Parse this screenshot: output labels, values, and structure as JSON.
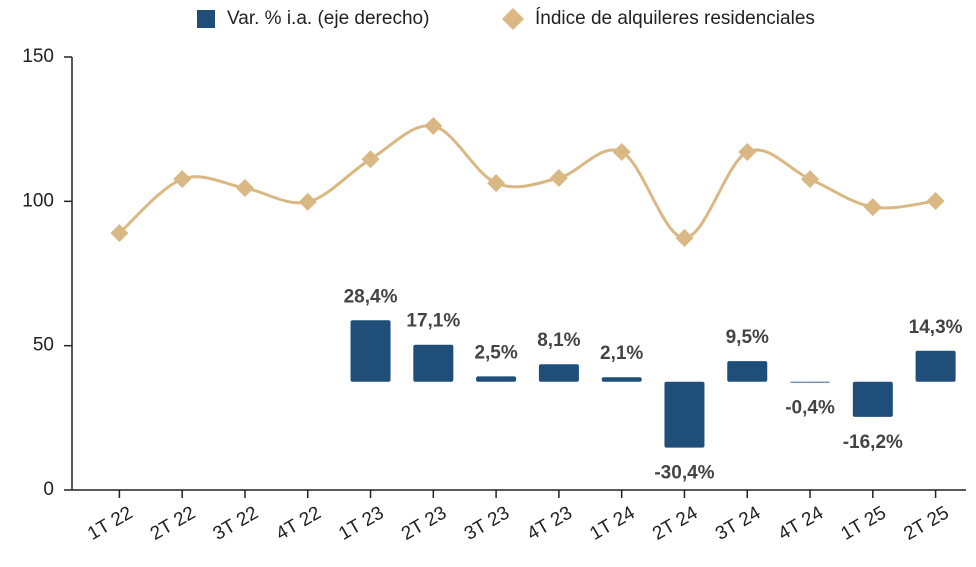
{
  "chart_data": {
    "type": "bar-line",
    "categories": [
      "1T 22",
      "2T 22",
      "3T 22",
      "4T 22",
      "1T 23",
      "2T 23",
      "3T 23",
      "4T 23",
      "1T 24",
      "2T 24",
      "3T 24",
      "4T 24",
      "1T 25",
      "2T 25"
    ],
    "series": [
      {
        "name": "Var. % i.a. (eje derecho)",
        "type": "bar",
        "axis": "y2",
        "color": "#1f4e79",
        "values": [
          null,
          null,
          null,
          null,
          28.4,
          17.1,
          2.5,
          8.1,
          2.1,
          -30.4,
          9.5,
          -0.4,
          -16.2,
          14.3
        ],
        "value_labels": [
          null,
          null,
          null,
          null,
          "28,4%",
          "17,1%",
          "2,5%",
          "8,1%",
          "2,1%",
          "-30,4%",
          "9,5%",
          "-0,4%",
          "-16,2%",
          "14,3%"
        ]
      },
      {
        "name": "Índice de alquileres residenciales",
        "type": "line",
        "color": "#d9b883",
        "values": [
          89.0,
          107.7,
          104.6,
          99.8,
          114.6,
          126.1,
          106.3,
          108.1,
          117.1,
          87.3,
          117.1,
          107.7,
          98.0,
          100.1
        ]
      }
    ],
    "ylim": [
      0,
      150
    ],
    "yticks": [
      0,
      50,
      100,
      150
    ],
    "y2lim": [
      -50,
      150
    ]
  }
}
